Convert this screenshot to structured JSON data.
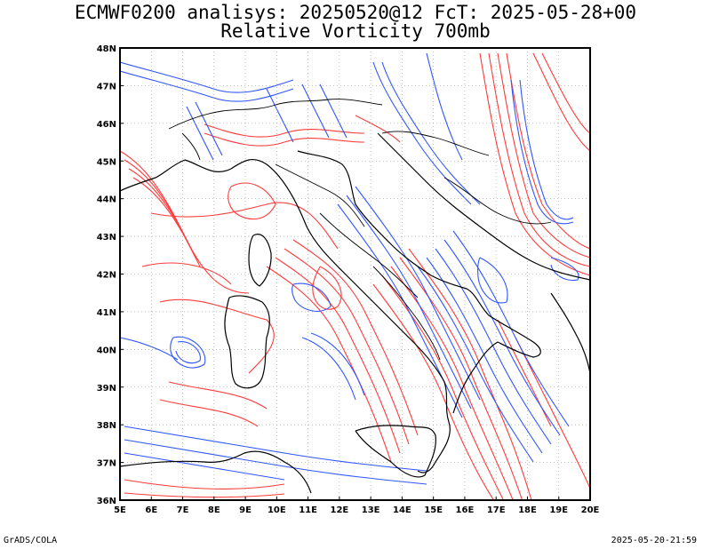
{
  "title": "ECMWF0200 analisys: 20250520@12 FcT: 2025-05-28+00",
  "subtitle": "Relative Vorticity 700mb",
  "footer": {
    "left": "GrADS/COLA",
    "right": "2025-05-20-21:59"
  },
  "map": {
    "lon_ticks": [
      "5E",
      "6E",
      "7E",
      "8E",
      "9E",
      "10E",
      "11E",
      "12E",
      "13E",
      "14E",
      "15E",
      "16E",
      "17E",
      "18E",
      "19E",
      "20E"
    ],
    "lat_ticks": [
      "48N",
      "47N",
      "46N",
      "45N",
      "44N",
      "43N",
      "42N",
      "41N",
      "40N",
      "39N",
      "38N",
      "37N",
      "36N"
    ],
    "extent": {
      "lon_min": 5,
      "lon_max": 20,
      "lat_min": 36,
      "lat_max": 48
    },
    "colors": {
      "positive": "#ff3b3b",
      "negative": "#2f55ff",
      "coast": "#000000",
      "grid": "#9a9a9a"
    }
  }
}
